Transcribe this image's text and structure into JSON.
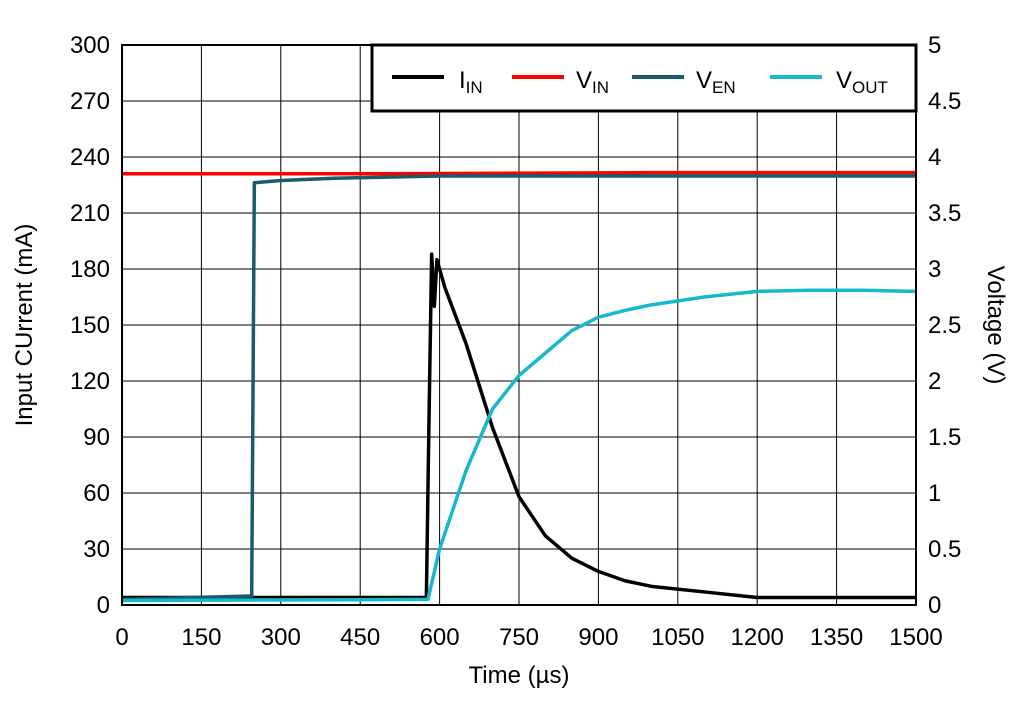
{
  "chart_data": {
    "type": "line",
    "title": "",
    "xlabel": "Time (µs)",
    "ylabel": "Input CUrrent (mA)",
    "y2label": "Voltage (V)",
    "xlim": [
      0,
      1500
    ],
    "ylim": [
      0,
      300
    ],
    "y2lim": [
      0,
      5
    ],
    "xticks": [
      "0",
      "150",
      "300",
      "450",
      "600",
      "750",
      "900",
      "1050",
      "1200",
      "1350",
      "1500"
    ],
    "yticks": [
      "0",
      "30",
      "60",
      "90",
      "120",
      "150",
      "180",
      "210",
      "240",
      "270",
      "300"
    ],
    "y2ticks": [
      "0",
      "0.5",
      "1",
      "1.5",
      "2",
      "2.5",
      "3",
      "3.5",
      "4",
      "4.5",
      "5"
    ],
    "grid": true,
    "legend_position": "top-right",
    "series": [
      {
        "name": "I",
        "sub": "IN",
        "axis": "left",
        "color": "#000000",
        "points": [
          [
            0,
            4
          ],
          [
            575,
            4
          ],
          [
            580,
            100
          ],
          [
            585,
            188
          ],
          [
            590,
            160
          ],
          [
            595,
            185
          ],
          [
            610,
            170
          ],
          [
            650,
            140
          ],
          [
            700,
            95
          ],
          [
            750,
            58
          ],
          [
            800,
            37
          ],
          [
            850,
            25
          ],
          [
            900,
            18
          ],
          [
            950,
            13
          ],
          [
            1000,
            10
          ],
          [
            1100,
            7
          ],
          [
            1200,
            4
          ],
          [
            1500,
            4
          ]
        ]
      },
      {
        "name": "V",
        "sub": "IN",
        "axis": "right",
        "color": "#ff0000",
        "points": [
          [
            0,
            3.85
          ],
          [
            500,
            3.85
          ],
          [
            1000,
            3.86
          ],
          [
            1500,
            3.86
          ]
        ]
      },
      {
        "name": "V",
        "sub": "EN",
        "axis": "right",
        "color": "#1a5a6a",
        "points": [
          [
            0,
            0.05
          ],
          [
            245,
            0.08
          ],
          [
            250,
            3.77
          ],
          [
            300,
            3.79
          ],
          [
            400,
            3.81
          ],
          [
            600,
            3.83
          ],
          [
            1500,
            3.83
          ]
        ]
      },
      {
        "name": "V",
        "sub": "OUT",
        "axis": "right",
        "color": "#17b8cc",
        "points": [
          [
            0,
            0.04
          ],
          [
            578,
            0.05
          ],
          [
            600,
            0.5
          ],
          [
            650,
            1.2
          ],
          [
            700,
            1.75
          ],
          [
            750,
            2.05
          ],
          [
            800,
            2.25
          ],
          [
            850,
            2.45
          ],
          [
            900,
            2.57
          ],
          [
            950,
            2.63
          ],
          [
            1000,
            2.68
          ],
          [
            1100,
            2.75
          ],
          [
            1200,
            2.8
          ],
          [
            1300,
            2.81
          ],
          [
            1400,
            2.81
          ],
          [
            1500,
            2.8
          ]
        ]
      }
    ]
  }
}
